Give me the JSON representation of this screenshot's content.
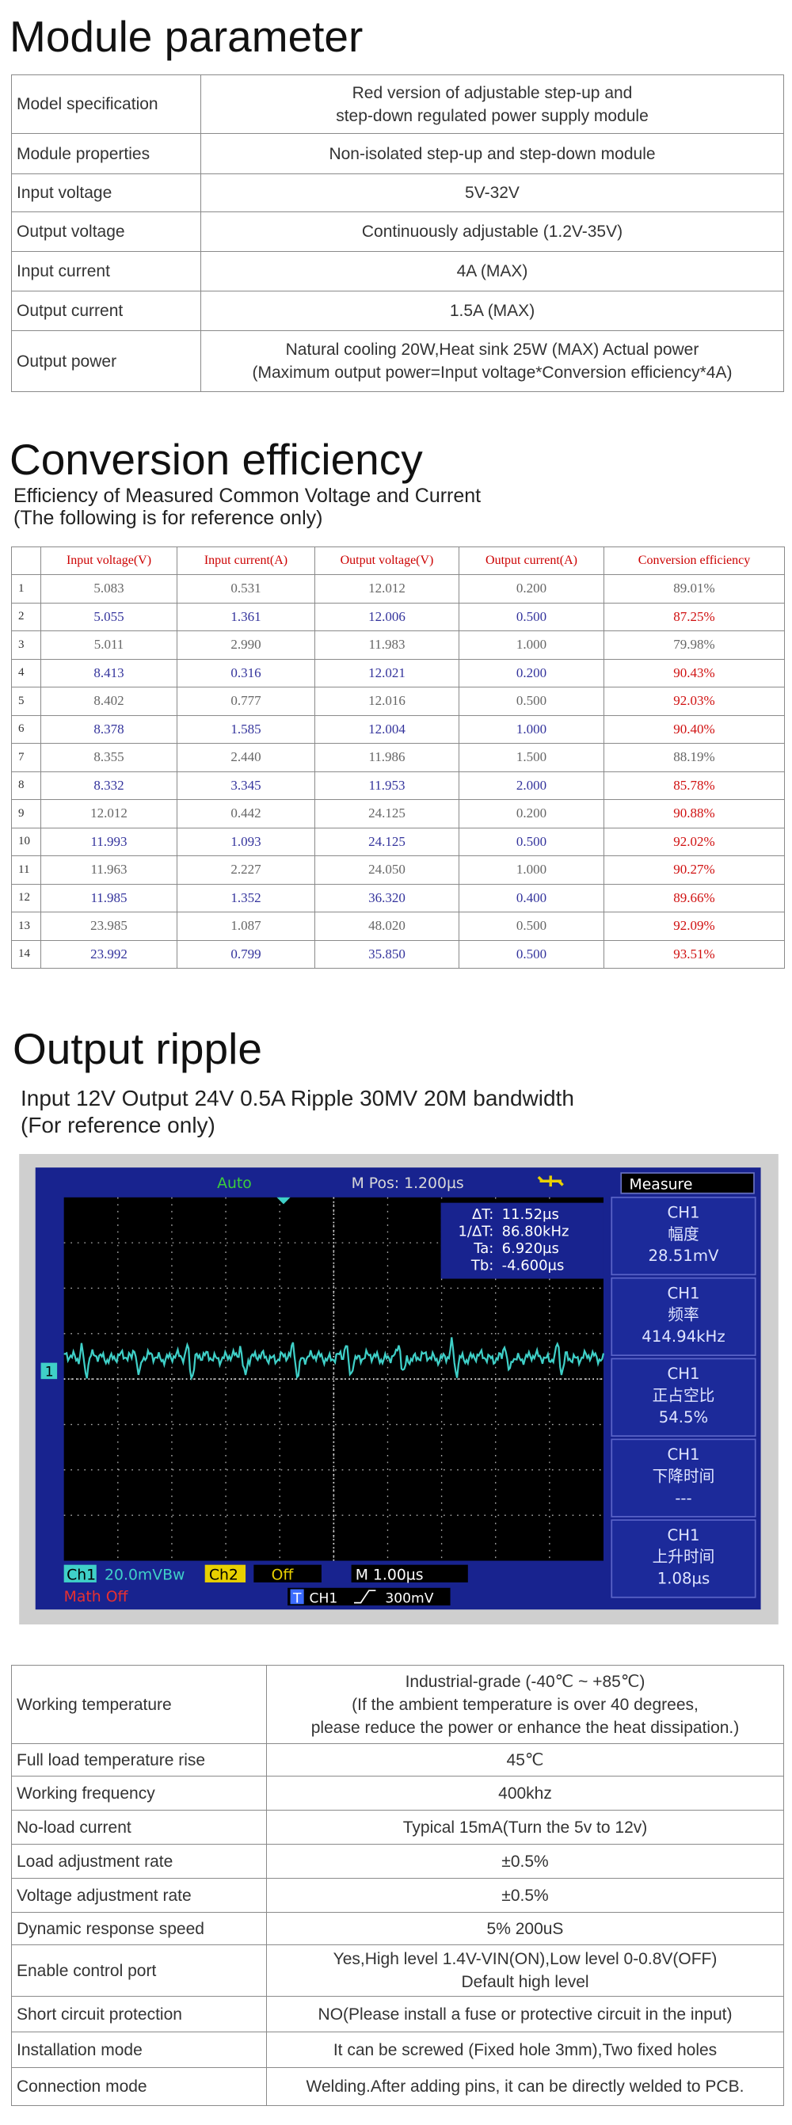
{
  "module_parameter": {
    "title": "Module parameter",
    "rows": [
      [
        "Model specification",
        "Red version of adjustable step-up and\nstep-down regulated power supply module"
      ],
      [
        "Module properties",
        "Non-isolated step-up and step-down module"
      ],
      [
        "Input voltage",
        "5V-32V"
      ],
      [
        "Output voltage",
        "Continuously adjustable (1.2V-35V)"
      ],
      [
        "Input current",
        "4A (MAX)"
      ],
      [
        "Output current",
        "1.5A (MAX)"
      ],
      [
        "Output power",
        "Natural cooling 20W,Heat sink 25W (MAX) Actual power\n(Maximum output power=Input voltage*Conversion efficiency*4A)"
      ]
    ]
  },
  "conversion_efficiency": {
    "title": "Conversion efficiency",
    "subtitle": [
      "Efficiency of Measured Common Voltage and Current",
      "(The following is for reference only)"
    ],
    "table": {
      "header": [
        "Input voltage(V)",
        "Input current(A)",
        "Output voltage(V)",
        "Output current(A)",
        "Conversion efficiency"
      ],
      "rows": [
        [
          "1",
          "5.083",
          "0.531",
          "12.012",
          "0.200",
          "89.01%"
        ],
        [
          "2",
          "5.055",
          "1.361",
          "12.006",
          "0.500",
          "87.25%"
        ],
        [
          "3",
          "5.011",
          "2.990",
          "11.983",
          "1.000",
          "79.98%"
        ],
        [
          "4",
          "8.413",
          "0.316",
          "12.021",
          "0.200",
          "90.43%"
        ],
        [
          "5",
          "8.402",
          "0.777",
          "12.016",
          "0.500",
          "92.03%"
        ],
        [
          "6",
          "8.378",
          "1.585",
          "12.004",
          "1.000",
          "90.40%"
        ],
        [
          "7",
          "8.355",
          "2.440",
          "11.986",
          "1.500",
          "88.19%"
        ],
        [
          "8",
          "8.332",
          "3.345",
          "11.953",
          "2.000",
          "85.78%"
        ],
        [
          "9",
          "12.012",
          "0.442",
          "24.125",
          "0.200",
          "90.88%"
        ],
        [
          "10",
          "11.993",
          "1.093",
          "24.125",
          "0.500",
          "92.02%"
        ],
        [
          "11",
          "11.963",
          "2.227",
          "24.050",
          "1.000",
          "90.27%"
        ],
        [
          "12",
          "11.985",
          "1.352",
          "36.320",
          "0.400",
          "89.66%"
        ],
        [
          "13",
          "23.985",
          "1.087",
          "48.020",
          "0.500",
          "92.09%"
        ],
        [
          "14",
          "23.992",
          "0.799",
          "35.850",
          "0.500",
          "93.51%"
        ]
      ]
    }
  },
  "output_ripple": {
    "title": "Output ripple",
    "subtitle": [
      "Input 12V Output 24V 0.5A Ripple 30MV 20M bandwidth",
      "(For reference only)"
    ],
    "scope": {
      "mode": "Auto",
      "position": "M Pos: 1.200µs",
      "menu": "Measure",
      "trigger_marker": "1",
      "cursor_labels": [
        "ΔT:",
        "1/ΔT:",
        "Ta:",
        "Tb:"
      ],
      "cursor_values": [
        "11.52µs",
        "86.80kHz",
        "6.920µs",
        "-4.600µs"
      ],
      "panels": [
        [
          "CH1",
          "幅度",
          "28.51mV"
        ],
        [
          "CH1",
          "频率",
          "414.94kHz"
        ],
        [
          "CH1",
          "正占空比",
          "54.5%"
        ],
        [
          "CH1",
          "下降时间",
          "---"
        ],
        [
          "CH1",
          "上升时间",
          "1.08µs"
        ]
      ],
      "ch1": "Ch1",
      "ch1_scale": "20.0mVBw",
      "ch2": "Ch2",
      "ch2_state": "Off",
      "timebase": "M 1.00µs",
      "math": "Math Off",
      "trigger_type": "T",
      "trigger_source": "CH1",
      "trigger_level": "300mV"
    }
  },
  "specifications": {
    "rows": [
      [
        "Working temperature",
        "Industrial-grade (-40℃ ~ +85℃)\n(If the ambient temperature is over 40 degrees,\nplease reduce the power or enhance the heat dissipation.)"
      ],
      [
        "Full load temperature rise",
        "45℃"
      ],
      [
        "Working frequency",
        "400khz"
      ],
      [
        "No-load current",
        "Typical 15mA(Turn the 5v to 12v)"
      ],
      [
        "Load adjustment rate",
        "±0.5%"
      ],
      [
        "Voltage adjustment rate",
        "±0.5%"
      ],
      [
        "Dynamic response speed",
        "5% 200uS"
      ],
      [
        "Enable control port",
        "Yes,High level 1.4V-VIN(ON),Low level 0-0.8V(OFF)\nDefault high level"
      ],
      [
        "Short circuit protection",
        "NO(Please install a fuse or protective circuit in the input)"
      ],
      [
        "Installation mode",
        "It can be screwed (Fixed hole 3mm),Two fixed holes"
      ],
      [
        "Connection mode",
        "Welding.After adding pins, it can be directly welded to PCB."
      ]
    ]
  }
}
